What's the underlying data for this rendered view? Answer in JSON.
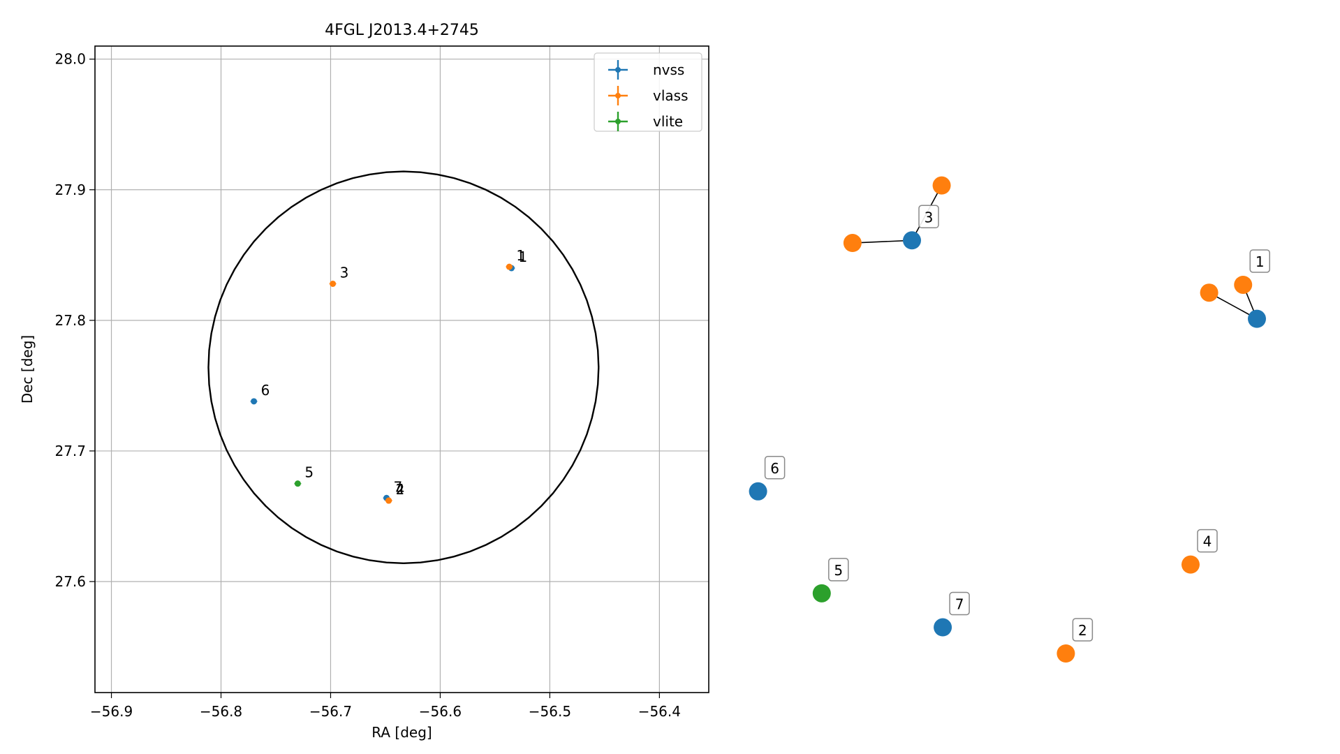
{
  "chart_data": [
    {
      "type": "scatter",
      "title": "4FGL J2013.4+2745",
      "xlabel": "RA [deg]",
      "ylabel": "Dec [deg]",
      "xlim": [
        -56.915,
        -56.355
      ],
      "ylim": [
        27.515,
        28.01
      ],
      "xticks": [
        -56.9,
        -56.8,
        -56.7,
        -56.6,
        -56.5,
        -56.4
      ],
      "xtick_labels": [
        "−56.9",
        "−56.8",
        "−56.7",
        "−56.6",
        "−56.5",
        "−56.4"
      ],
      "yticks": [
        27.6,
        27.7,
        27.8,
        27.9,
        28.0
      ],
      "ytick_labels": [
        "27.6",
        "27.7",
        "27.8",
        "27.9",
        "28.0"
      ],
      "grid": true,
      "legend": "top-right",
      "series": [
        {
          "name": "nvss",
          "color": "#1f77b4",
          "points": [
            {
              "label": "1",
              "x": -56.535,
              "y": 27.84
            },
            {
              "label": "6",
              "x": -56.77,
              "y": 27.738
            },
            {
              "label": "7",
              "x": -56.649,
              "y": 27.664
            }
          ]
        },
        {
          "name": "vlass",
          "color": "#ff7f0e",
          "points": [
            {
              "label": "1",
              "x": -56.537,
              "y": 27.841
            },
            {
              "label": "3",
              "x": -56.698,
              "y": 27.828
            },
            {
              "label": "2",
              "x": -56.647,
              "y": 27.662
            },
            {
              "label": "4",
              "x": -56.647,
              "y": 27.662
            }
          ]
        },
        {
          "name": "vlite",
          "color": "#2ca02c",
          "points": [
            {
              "label": "5",
              "x": -56.73,
              "y": 27.675
            }
          ]
        }
      ],
      "ellipse": {
        "color": "#000000",
        "center": [
          -56.6335,
          27.764
        ],
        "semi_axes": [
          0.178,
          0.15
        ],
        "angle_deg": 0
      }
    },
    {
      "type": "scatter",
      "nodes": [
        {
          "label": "1",
          "color": "#1f77b4",
          "x": 0.95,
          "y": 0.64,
          "anchor": true
        },
        {
          "label": "1",
          "color": "#ff7f0e",
          "x": 0.86,
          "y": 0.69
        },
        {
          "label": "1",
          "color": "#ff7f0e",
          "x": 0.924,
          "y": 0.705,
          "boxed": true
        },
        {
          "label": "3",
          "color": "#1f77b4",
          "x": 0.3,
          "y": 0.79,
          "boxed": true
        },
        {
          "label": "3",
          "color": "#ff7f0e",
          "x": 0.188,
          "y": 0.785
        },
        {
          "label": "3",
          "color": "#ff7f0e",
          "x": 0.356,
          "y": 0.895
        },
        {
          "label": "6",
          "color": "#1f77b4",
          "x": 0.01,
          "y": 0.31,
          "boxed": true
        },
        {
          "label": "5",
          "color": "#2ca02c",
          "x": 0.13,
          "y": 0.115,
          "boxed": true
        },
        {
          "label": "7",
          "color": "#1f77b4",
          "x": 0.358,
          "y": 0.05,
          "boxed": true
        },
        {
          "label": "2",
          "color": "#ff7f0e",
          "x": 0.59,
          "y": 0.0,
          "boxed": true
        },
        {
          "label": "4",
          "color": "#ff7f0e",
          "x": 0.825,
          "y": 0.17,
          "boxed": true
        }
      ],
      "edges": [
        [
          0,
          1
        ],
        [
          0,
          2
        ],
        [
          3,
          4
        ],
        [
          3,
          5
        ]
      ]
    }
  ]
}
